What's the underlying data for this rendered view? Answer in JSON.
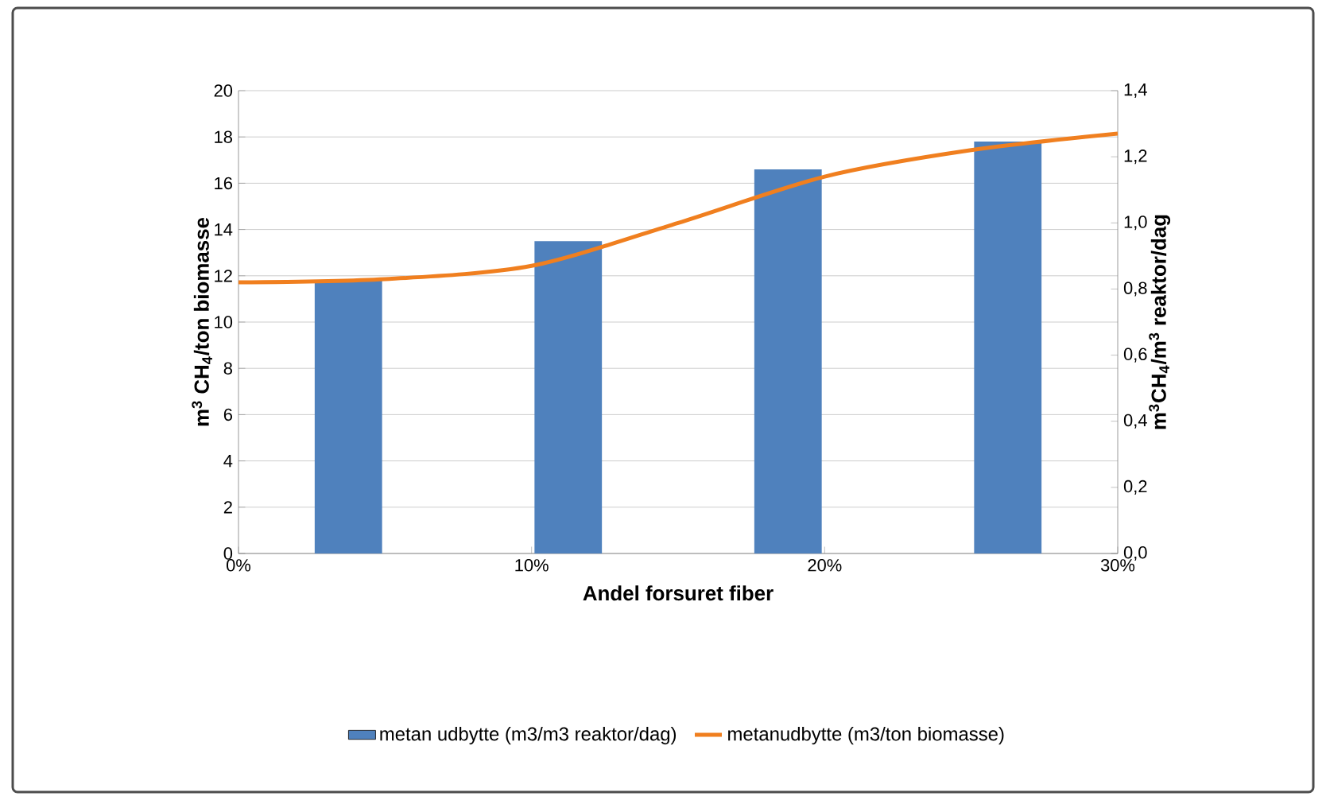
{
  "chart_data": {
    "type": "bar",
    "xlabel": "Andel forsuret fiber",
    "ylabel": "m$^{3}$ CH$_{4}$/ton biomasse",
    "y2label": "m$^{3}$CH$_{4}$/m$^{3}$ reaktor/dag",
    "series": [
      {
        "name": "metan udbytte (m3/m3 reaktor/dag)",
        "color": "#4f81bd",
        "x": [
          3.75,
          11.25,
          18.75,
          26.25
        ],
        "values": [
          11.8,
          13.5,
          16.6,
          17.8
        ]
      },
      {
        "type": "line",
        "axis": "y2",
        "name": "metanudbytte (m3/ton biomasse)",
        "color": "#f07f1f",
        "x": [
          0,
          5,
          10,
          15,
          20,
          25,
          30
        ],
        "values": [
          0.82,
          0.83,
          0.87,
          1.0,
          1.14,
          1.22,
          1.27
        ]
      }
    ],
    "xlim": [
      0,
      30
    ],
    "xticks": [
      {
        "value": 0,
        "label": "0%"
      },
      {
        "value": 10,
        "label": "10%"
      },
      {
        "value": 20,
        "label": "20%"
      },
      {
        "value": 30,
        "label": "30%"
      }
    ],
    "ylim": [
      0,
      20
    ],
    "yticks": [
      0,
      2,
      4,
      6,
      8,
      10,
      12,
      14,
      16,
      18,
      20
    ],
    "y2lim": [
      0,
      1.4
    ],
    "y2ticks": [
      {
        "value": 0,
        "label": "0,0"
      },
      {
        "value": 0.2,
        "label": "0,2"
      },
      {
        "value": 0.4,
        "label": "0,4"
      },
      {
        "value": 0.6,
        "label": "0,6"
      },
      {
        "value": 0.8,
        "label": "0,8"
      },
      {
        "value": 1.0,
        "label": "1,0"
      },
      {
        "value": 1.2,
        "label": "1,2"
      },
      {
        "value": 1.4,
        "label": "1,4"
      }
    ],
    "grid": "y",
    "legend": "bottom"
  }
}
